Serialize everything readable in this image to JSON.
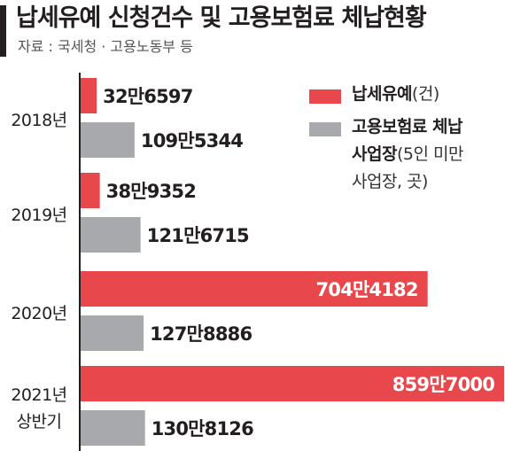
{
  "header": {
    "title": "납세유예 신청건수 및 고용보험료 체납현황",
    "source": "자료 : 국세청 · 고용노동부 등"
  },
  "legend": [
    {
      "label": "납세유예",
      "note": "(건)",
      "color": "#e8474c"
    },
    {
      "label_lines": [
        "고용보험료 체납",
        "사업장"
      ],
      "note_lines": [
        "(5인 미만",
        "사업장, 곳)"
      ],
      "color": "#a7a9ac"
    }
  ],
  "colors": {
    "red": "#e8474c",
    "gray": "#a7a9ac",
    "text": "#231f20",
    "axis": "#231f20"
  },
  "chart_data": {
    "type": "bar",
    "orientation": "horizontal",
    "title": "납세유예 신청건수 및 고용보험료 체납현황",
    "categories": [
      {
        "lines": [
          "2018년"
        ]
      },
      {
        "lines": [
          "2019년"
        ]
      },
      {
        "lines": [
          "2020년"
        ]
      },
      {
        "lines": [
          "2021년",
          "상반기"
        ]
      }
    ],
    "series": [
      {
        "name": "납세유예(건)",
        "color": "#e8474c",
        "values": [
          326597,
          389352,
          7044182,
          8597000
        ],
        "labels": [
          "32만6597",
          "38만9352",
          "704만4182",
          "859만7000"
        ]
      },
      {
        "name": "고용보험료 체납 사업장(5인 미만 사업장, 곳)",
        "color": "#a7a9ac",
        "values": [
          1095344,
          1216715,
          1278886,
          1308126
        ],
        "labels": [
          "109만5344",
          "121만6715",
          "127만8886",
          "130만8126"
        ]
      }
    ],
    "xlim": [
      0,
      8597000
    ],
    "grid": false,
    "legend_position": "top-right"
  }
}
